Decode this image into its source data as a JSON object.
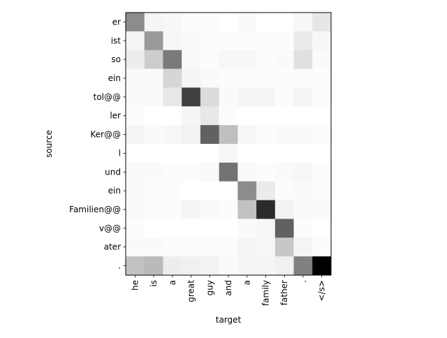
{
  "chart_data": {
    "type": "heatmap",
    "title": "",
    "xlabel": "target",
    "ylabel": "source",
    "x_tick_labels": [
      "he",
      "is",
      "a",
      "great",
      "guy",
      "and",
      "a",
      "family",
      "father",
      ".",
      "</s>"
    ],
    "y_tick_labels": [
      "er",
      "ist",
      "so",
      "ein",
      "tol@@",
      "ler",
      "Ker@@",
      "l",
      "und",
      "ein",
      "Familien@@",
      "v@@",
      "ater",
      "."
    ],
    "colormap": "greys",
    "value_range": [
      0,
      1
    ],
    "values": [
      [
        0.45,
        0.04,
        0.03,
        0.01,
        0.01,
        0.0,
        0.02,
        0.0,
        0.0,
        0.03,
        0.1
      ],
      [
        0.04,
        0.4,
        0.03,
        0.02,
        0.01,
        0.01,
        0.01,
        0.01,
        0.01,
        0.08,
        0.03
      ],
      [
        0.07,
        0.2,
        0.52,
        0.02,
        0.01,
        0.03,
        0.03,
        0.01,
        0.02,
        0.12,
        0.02
      ],
      [
        0.02,
        0.02,
        0.16,
        0.04,
        0.02,
        0.01,
        0.01,
        0.01,
        0.01,
        0.01,
        0.01
      ],
      [
        0.02,
        0.02,
        0.09,
        0.75,
        0.14,
        0.02,
        0.04,
        0.04,
        0.01,
        0.04,
        0.01
      ],
      [
        0.01,
        0.0,
        0.0,
        0.04,
        0.09,
        0.01,
        0.0,
        0.0,
        0.0,
        0.0,
        0.0
      ],
      [
        0.04,
        0.02,
        0.03,
        0.05,
        0.62,
        0.25,
        0.03,
        0.01,
        0.02,
        0.02,
        0.01
      ],
      [
        0.0,
        0.0,
        0.0,
        0.0,
        0.0,
        0.03,
        0.0,
        0.0,
        0.0,
        0.0,
        0.0
      ],
      [
        0.02,
        0.02,
        0.01,
        0.01,
        0.02,
        0.55,
        0.02,
        0.01,
        0.02,
        0.03,
        0.01
      ],
      [
        0.02,
        0.01,
        0.01,
        0.0,
        0.0,
        0.0,
        0.45,
        0.08,
        0.01,
        0.02,
        0.01
      ],
      [
        0.02,
        0.01,
        0.01,
        0.04,
        0.02,
        0.01,
        0.24,
        0.83,
        0.05,
        0.02,
        0.02
      ],
      [
        0.01,
        0.0,
        0.0,
        0.0,
        0.0,
        0.0,
        0.02,
        0.03,
        0.62,
        0.01,
        0.0
      ],
      [
        0.02,
        0.02,
        0.01,
        0.01,
        0.01,
        0.01,
        0.04,
        0.03,
        0.22,
        0.04,
        0.01
      ],
      [
        0.24,
        0.27,
        0.07,
        0.06,
        0.05,
        0.02,
        0.04,
        0.04,
        0.06,
        0.5,
        1.0
      ]
    ]
  }
}
